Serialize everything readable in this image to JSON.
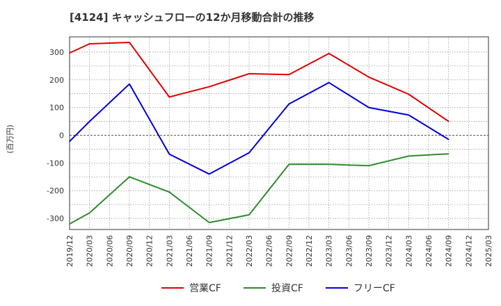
{
  "chart_data": {
    "type": "line",
    "title": "[4124]  キャッシュフローの12か月移動合計の推移",
    "ylabel": "(百万円)",
    "xlabel": "",
    "ylim": [
      -340,
      355
    ],
    "yticks": [
      300,
      200,
      100,
      0,
      -100,
      -200,
      -300
    ],
    "categories": [
      "2019/12",
      "2020/03",
      "2020/06",
      "2020/09",
      "2020/12",
      "2021/03",
      "2021/06",
      "2021/09",
      "2021/12",
      "2022/03",
      "2022/06",
      "2022/09",
      "2022/12",
      "2023/03",
      "2023/06",
      "2023/09",
      "2023/12",
      "2024/03",
      "2024/06",
      "2024/09",
      "2024/12",
      "2025/03"
    ],
    "grid": true,
    "legend": "bottom",
    "series": [
      {
        "name": "営業CF",
        "color": "#e00000",
        "values": [
          297,
          330,
          null,
          335,
          null,
          138,
          null,
          175,
          null,
          222,
          null,
          219,
          null,
          295,
          null,
          210,
          null,
          148,
          null,
          50,
          null,
          null
        ]
      },
      {
        "name": "投資CF",
        "color": "#2e8b2e",
        "values": [
          -320,
          -280,
          null,
          -150,
          null,
          -205,
          null,
          -315,
          null,
          -287,
          null,
          -105,
          null,
          -105,
          null,
          -110,
          null,
          -75,
          null,
          -67,
          null,
          null
        ]
      },
      {
        "name": "フリーCF",
        "color": "#0000dd",
        "values": [
          -22,
          50,
          null,
          185,
          null,
          -68,
          null,
          -140,
          null,
          -63,
          null,
          113,
          null,
          190,
          null,
          100,
          null,
          73,
          null,
          -15,
          null,
          null
        ]
      }
    ]
  }
}
